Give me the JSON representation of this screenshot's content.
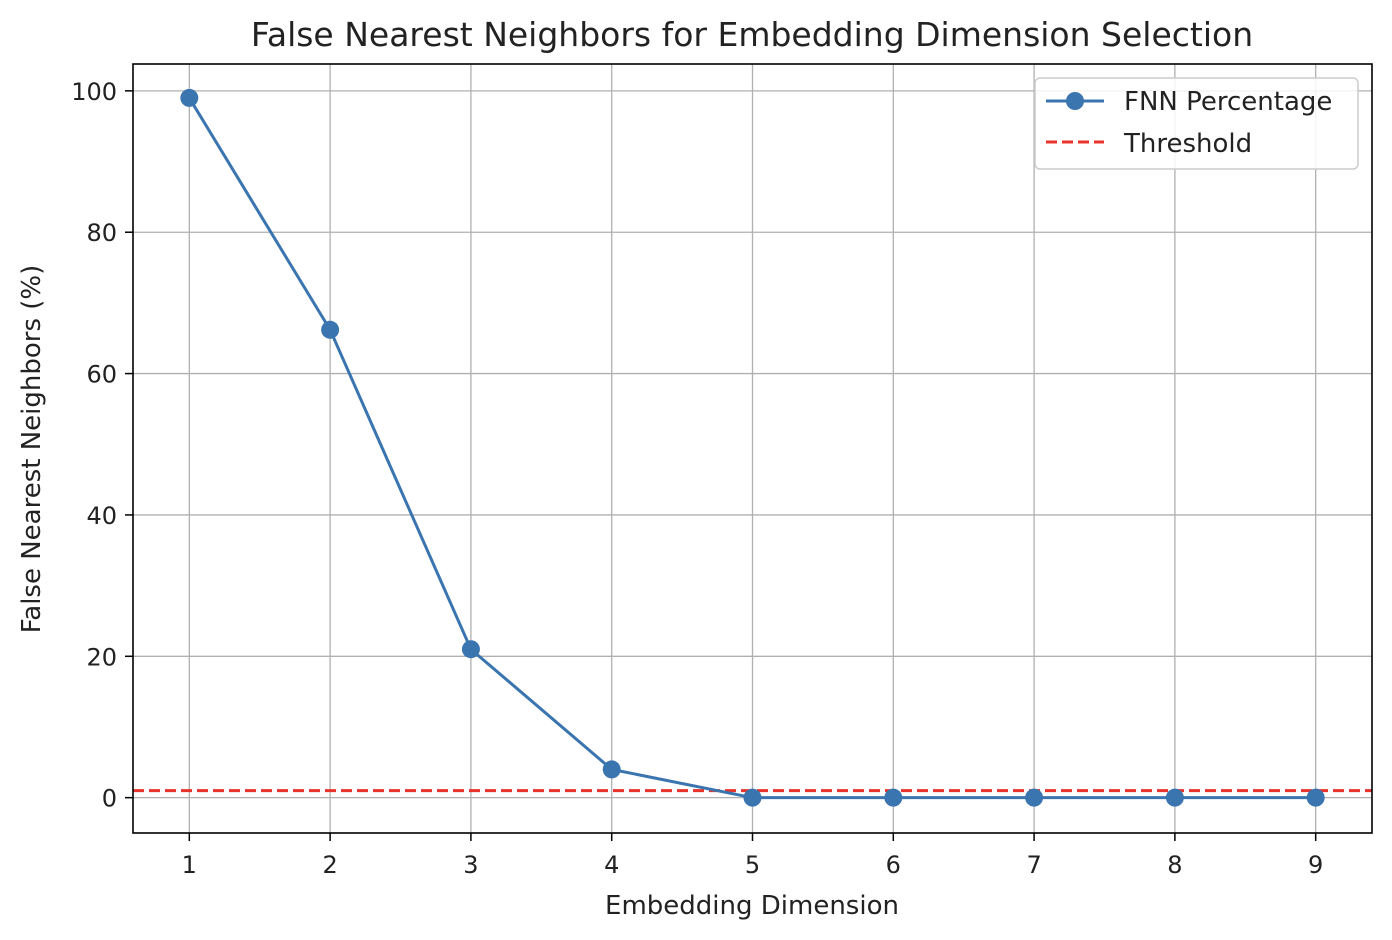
{
  "chart_data": {
    "type": "line",
    "title": "False Nearest Neighbors for Embedding Dimension Selection",
    "xlabel": "Embedding Dimension",
    "ylabel": "False Nearest Neighbors (%)",
    "x": [
      1,
      2,
      3,
      4,
      5,
      6,
      7,
      8,
      9
    ],
    "xlim": [
      0.6,
      9.4
    ],
    "ylim": [
      -5,
      103.8
    ],
    "xticks": [
      1,
      2,
      3,
      4,
      5,
      6,
      7,
      8,
      9
    ],
    "yticks": [
      0,
      20,
      40,
      60,
      80,
      100
    ],
    "grid": true,
    "legend_position": "top-right",
    "series": [
      {
        "name": "FNN Percentage",
        "values": [
          99,
          66.2,
          21,
          4,
          0,
          0,
          0,
          0,
          0
        ],
        "color": "#3a75b0",
        "style": "solid",
        "marker": "circle"
      }
    ],
    "threshold": {
      "name": "Threshold",
      "value": 1,
      "color": "#e8332a",
      "style": "dashed"
    }
  }
}
